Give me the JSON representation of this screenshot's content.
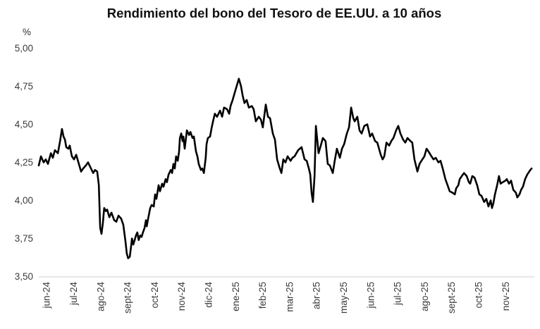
{
  "chart_data": {
    "type": "line",
    "title": "Rendimiento del bono del Tesoro de EE.UU. a 10 años",
    "unit_label": "%",
    "grid": false,
    "legend": false,
    "y_axis": {
      "min": 3.5,
      "max": 5.0,
      "tick_step": 0.25,
      "tick_values": [
        5.0,
        4.75,
        4.5,
        4.25,
        4.0,
        3.75,
        3.5
      ],
      "tick_labels": [
        "5,00",
        "4,75",
        "4,50",
        "4,25",
        "4,00",
        "3,75",
        "3,50"
      ]
    },
    "x_axis": {
      "tick_labels": [
        "jun-24",
        "jul-24",
        "ago-24",
        "sept-24",
        "oct-24",
        "nov-24",
        "dic-24",
        "ene-25",
        "feb-25",
        "mar-25",
        "abr-25",
        "may-25",
        "jun-25",
        "jul-25",
        "ago-25",
        "sept-25",
        "oct-25",
        "nov-25"
      ],
      "unit": "months since June 2024"
    },
    "series": [
      {
        "name": "Rendimiento del bono del Tesoro de EE.UU. a 10 años",
        "color": "#000000",
        "points": [
          [
            0.0,
            4.23
          ],
          [
            0.08,
            4.29
          ],
          [
            0.18,
            4.25
          ],
          [
            0.26,
            4.27
          ],
          [
            0.34,
            4.24
          ],
          [
            0.45,
            4.31
          ],
          [
            0.52,
            4.28
          ],
          [
            0.6,
            4.33
          ],
          [
            0.71,
            4.31
          ],
          [
            0.79,
            4.39
          ],
          [
            0.86,
            4.47
          ],
          [
            0.92,
            4.42
          ],
          [
            0.97,
            4.4
          ],
          [
            1.02,
            4.35
          ],
          [
            1.1,
            4.34
          ],
          [
            1.15,
            4.36
          ],
          [
            1.23,
            4.29
          ],
          [
            1.31,
            4.27
          ],
          [
            1.39,
            4.3
          ],
          [
            1.49,
            4.24
          ],
          [
            1.57,
            4.19
          ],
          [
            1.65,
            4.21
          ],
          [
            1.75,
            4.23
          ],
          [
            1.83,
            4.25
          ],
          [
            1.91,
            4.22
          ],
          [
            2.02,
            4.18
          ],
          [
            2.09,
            4.2
          ],
          [
            2.17,
            4.19
          ],
          [
            2.23,
            4.1
          ],
          [
            2.28,
            3.82
          ],
          [
            2.33,
            3.78
          ],
          [
            2.38,
            3.85
          ],
          [
            2.43,
            3.95
          ],
          [
            2.49,
            3.93
          ],
          [
            2.54,
            3.94
          ],
          [
            2.62,
            3.89
          ],
          [
            2.7,
            3.92
          ],
          [
            2.8,
            3.87
          ],
          [
            2.88,
            3.86
          ],
          [
            2.96,
            3.9
          ],
          [
            3.06,
            3.88
          ],
          [
            3.14,
            3.84
          ],
          [
            3.22,
            3.73
          ],
          [
            3.27,
            3.65
          ],
          [
            3.32,
            3.62
          ],
          [
            3.38,
            3.63
          ],
          [
            3.43,
            3.7
          ],
          [
            3.46,
            3.75
          ],
          [
            3.51,
            3.71
          ],
          [
            3.56,
            3.74
          ],
          [
            3.61,
            3.77
          ],
          [
            3.66,
            3.79
          ],
          [
            3.71,
            3.74
          ],
          [
            3.77,
            3.77
          ],
          [
            3.82,
            3.76
          ],
          [
            3.87,
            3.79
          ],
          [
            3.93,
            3.82
          ],
          [
            3.98,
            3.87
          ],
          [
            4.01,
            3.83
          ],
          [
            4.06,
            3.88
          ],
          [
            4.14,
            3.95
          ],
          [
            4.19,
            3.97
          ],
          [
            4.27,
            3.96
          ],
          [
            4.32,
            4.04
          ],
          [
            4.37,
            4.01
          ],
          [
            4.45,
            4.1
          ],
          [
            4.5,
            4.06
          ],
          [
            4.58,
            4.11
          ],
          [
            4.63,
            4.09
          ],
          [
            4.71,
            4.14
          ],
          [
            4.76,
            4.12
          ],
          [
            4.82,
            4.17
          ],
          [
            4.9,
            4.2
          ],
          [
            4.95,
            4.18
          ],
          [
            5.0,
            4.24
          ],
          [
            5.05,
            4.21
          ],
          [
            5.1,
            4.29
          ],
          [
            5.16,
            4.26
          ],
          [
            5.21,
            4.32
          ],
          [
            5.24,
            4.41
          ],
          [
            5.29,
            4.44
          ],
          [
            5.34,
            4.39
          ],
          [
            5.37,
            4.42
          ],
          [
            5.42,
            4.34
          ],
          [
            5.5,
            4.46
          ],
          [
            5.58,
            4.43
          ],
          [
            5.63,
            4.45
          ],
          [
            5.71,
            4.41
          ],
          [
            5.76,
            4.42
          ],
          [
            5.84,
            4.32
          ],
          [
            5.89,
            4.29
          ],
          [
            5.94,
            4.24
          ],
          [
            6.02,
            4.2
          ],
          [
            6.07,
            4.21
          ],
          [
            6.13,
            4.18
          ],
          [
            6.2,
            4.28
          ],
          [
            6.23,
            4.37
          ],
          [
            6.28,
            4.41
          ],
          [
            6.36,
            4.42
          ],
          [
            6.41,
            4.47
          ],
          [
            6.47,
            4.52
          ],
          [
            6.54,
            4.57
          ],
          [
            6.62,
            4.55
          ],
          [
            6.73,
            4.59
          ],
          [
            6.81,
            4.55
          ],
          [
            6.88,
            4.61
          ],
          [
            6.99,
            4.6
          ],
          [
            7.07,
            4.57
          ],
          [
            7.12,
            4.62
          ],
          [
            7.2,
            4.66
          ],
          [
            7.28,
            4.71
          ],
          [
            7.38,
            4.77
          ],
          [
            7.43,
            4.8
          ],
          [
            7.51,
            4.75
          ],
          [
            7.57,
            4.69
          ],
          [
            7.64,
            4.64
          ],
          [
            7.72,
            4.66
          ],
          [
            7.8,
            4.61
          ],
          [
            7.91,
            4.62
          ],
          [
            7.98,
            4.6
          ],
          [
            8.06,
            4.52
          ],
          [
            8.17,
            4.55
          ],
          [
            8.25,
            4.53
          ],
          [
            8.32,
            4.48
          ],
          [
            8.43,
            4.63
          ],
          [
            8.51,
            4.55
          ],
          [
            8.59,
            4.54
          ],
          [
            8.69,
            4.44
          ],
          [
            8.77,
            4.4
          ],
          [
            8.85,
            4.27
          ],
          [
            8.95,
            4.21
          ],
          [
            9.01,
            4.18
          ],
          [
            9.08,
            4.27
          ],
          [
            9.16,
            4.25
          ],
          [
            9.24,
            4.29
          ],
          [
            9.35,
            4.26
          ],
          [
            9.42,
            4.28
          ],
          [
            9.5,
            4.29
          ],
          [
            9.63,
            4.33
          ],
          [
            9.76,
            4.35
          ],
          [
            9.87,
            4.27
          ],
          [
            9.95,
            4.26
          ],
          [
            10.03,
            4.21
          ],
          [
            10.08,
            4.17
          ],
          [
            10.13,
            4.05
          ],
          [
            10.18,
            3.99
          ],
          [
            10.24,
            4.16
          ],
          [
            10.29,
            4.49
          ],
          [
            10.39,
            4.31
          ],
          [
            10.47,
            4.36
          ],
          [
            10.55,
            4.41
          ],
          [
            10.65,
            4.39
          ],
          [
            10.73,
            4.24
          ],
          [
            10.81,
            4.23
          ],
          [
            10.92,
            4.18
          ],
          [
            10.99,
            4.26
          ],
          [
            11.07,
            4.34
          ],
          [
            11.18,
            4.28
          ],
          [
            11.26,
            4.34
          ],
          [
            11.34,
            4.37
          ],
          [
            11.44,
            4.44
          ],
          [
            11.52,
            4.48
          ],
          [
            11.6,
            4.61
          ],
          [
            11.68,
            4.54
          ],
          [
            11.73,
            4.52
          ],
          [
            11.83,
            4.55
          ],
          [
            11.91,
            4.46
          ],
          [
            11.99,
            4.44
          ],
          [
            12.09,
            4.49
          ],
          [
            12.2,
            4.5
          ],
          [
            12.25,
            4.46
          ],
          [
            12.3,
            4.42
          ],
          [
            12.38,
            4.44
          ],
          [
            12.49,
            4.39
          ],
          [
            12.57,
            4.38
          ],
          [
            12.7,
            4.3
          ],
          [
            12.77,
            4.27
          ],
          [
            12.83,
            4.29
          ],
          [
            12.91,
            4.38
          ],
          [
            13.01,
            4.36
          ],
          [
            13.09,
            4.39
          ],
          [
            13.17,
            4.41
          ],
          [
            13.27,
            4.46
          ],
          [
            13.35,
            4.49
          ],
          [
            13.43,
            4.44
          ],
          [
            13.53,
            4.4
          ],
          [
            13.61,
            4.38
          ],
          [
            13.69,
            4.41
          ],
          [
            13.8,
            4.39
          ],
          [
            13.87,
            4.38
          ],
          [
            13.95,
            4.27
          ],
          [
            14.06,
            4.19
          ],
          [
            14.14,
            4.24
          ],
          [
            14.21,
            4.26
          ],
          [
            14.32,
            4.29
          ],
          [
            14.4,
            4.34
          ],
          [
            14.48,
            4.32
          ],
          [
            14.58,
            4.29
          ],
          [
            14.66,
            4.27
          ],
          [
            14.74,
            4.28
          ],
          [
            14.84,
            4.25
          ],
          [
            14.92,
            4.26
          ],
          [
            15.0,
            4.21
          ],
          [
            15.1,
            4.14
          ],
          [
            15.18,
            4.1
          ],
          [
            15.26,
            4.06
          ],
          [
            15.37,
            4.05
          ],
          [
            15.45,
            4.04
          ],
          [
            15.5,
            4.08
          ],
          [
            15.58,
            4.1
          ],
          [
            15.63,
            4.14
          ],
          [
            15.71,
            4.16
          ],
          [
            15.79,
            4.18
          ],
          [
            15.89,
            4.16
          ],
          [
            15.97,
            4.12
          ],
          [
            16.02,
            4.11
          ],
          [
            16.1,
            4.16
          ],
          [
            16.18,
            4.15
          ],
          [
            16.28,
            4.1
          ],
          [
            16.36,
            4.04
          ],
          [
            16.44,
            4.03
          ],
          [
            16.54,
            3.99
          ],
          [
            16.62,
            4.01
          ],
          [
            16.7,
            3.96
          ],
          [
            16.78,
            4.0
          ],
          [
            16.83,
            3.95
          ],
          [
            16.88,
            3.98
          ],
          [
            16.94,
            4.04
          ],
          [
            17.02,
            4.1
          ],
          [
            17.09,
            4.16
          ],
          [
            17.15,
            4.11
          ],
          [
            17.23,
            4.12
          ],
          [
            17.33,
            4.13
          ],
          [
            17.38,
            4.14
          ],
          [
            17.46,
            4.11
          ],
          [
            17.54,
            4.13
          ],
          [
            17.62,
            4.07
          ],
          [
            17.72,
            4.05
          ],
          [
            17.77,
            4.02
          ],
          [
            17.85,
            4.04
          ],
          [
            17.91,
            4.07
          ],
          [
            17.98,
            4.09
          ],
          [
            18.06,
            4.14
          ],
          [
            18.14,
            4.17
          ],
          [
            18.25,
            4.2
          ],
          [
            18.3,
            4.21
          ]
        ]
      }
    ]
  },
  "colors": {
    "line": "#000000",
    "axis_line": "#d9d9d9",
    "tick_text": "#3a3a3a",
    "title_text": "#111111",
    "background": "#ffffff"
  }
}
